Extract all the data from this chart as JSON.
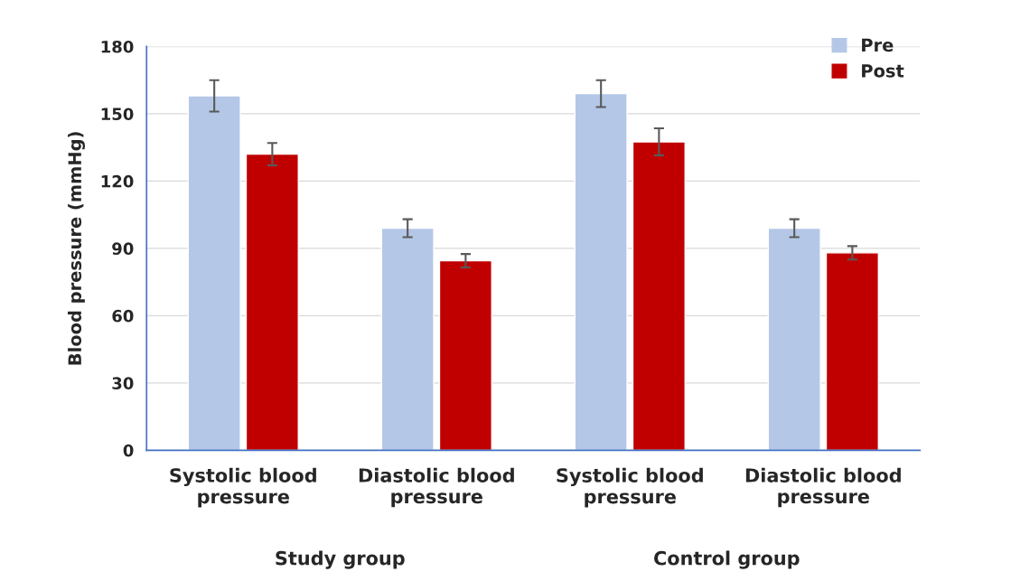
{
  "chart_data": {
    "type": "bar",
    "ylabel": "Blood pressure (mmHg)",
    "categories": [
      "Systolic blood\npressure",
      "Diastolic blood\npressure",
      "Systolic blood\npressure",
      "Diastolic blood\npressure"
    ],
    "series": [
      {
        "name": "Pre",
        "color": "#b4c7e7",
        "values": [
          158,
          99,
          159,
          99
        ],
        "errors": [
          7,
          4,
          6,
          4
        ]
      },
      {
        "name": "Post",
        "color": "#c00000",
        "values": [
          132,
          84.5,
          137.5,
          88
        ],
        "errors": [
          5,
          3,
          6,
          3
        ]
      }
    ],
    "annotations": [
      "Study group",
      "Control group"
    ],
    "ylim": [
      0,
      180
    ],
    "yticks": [
      0,
      30,
      60,
      90,
      120,
      150,
      180
    ],
    "grid": "y",
    "legend": "top right"
  }
}
